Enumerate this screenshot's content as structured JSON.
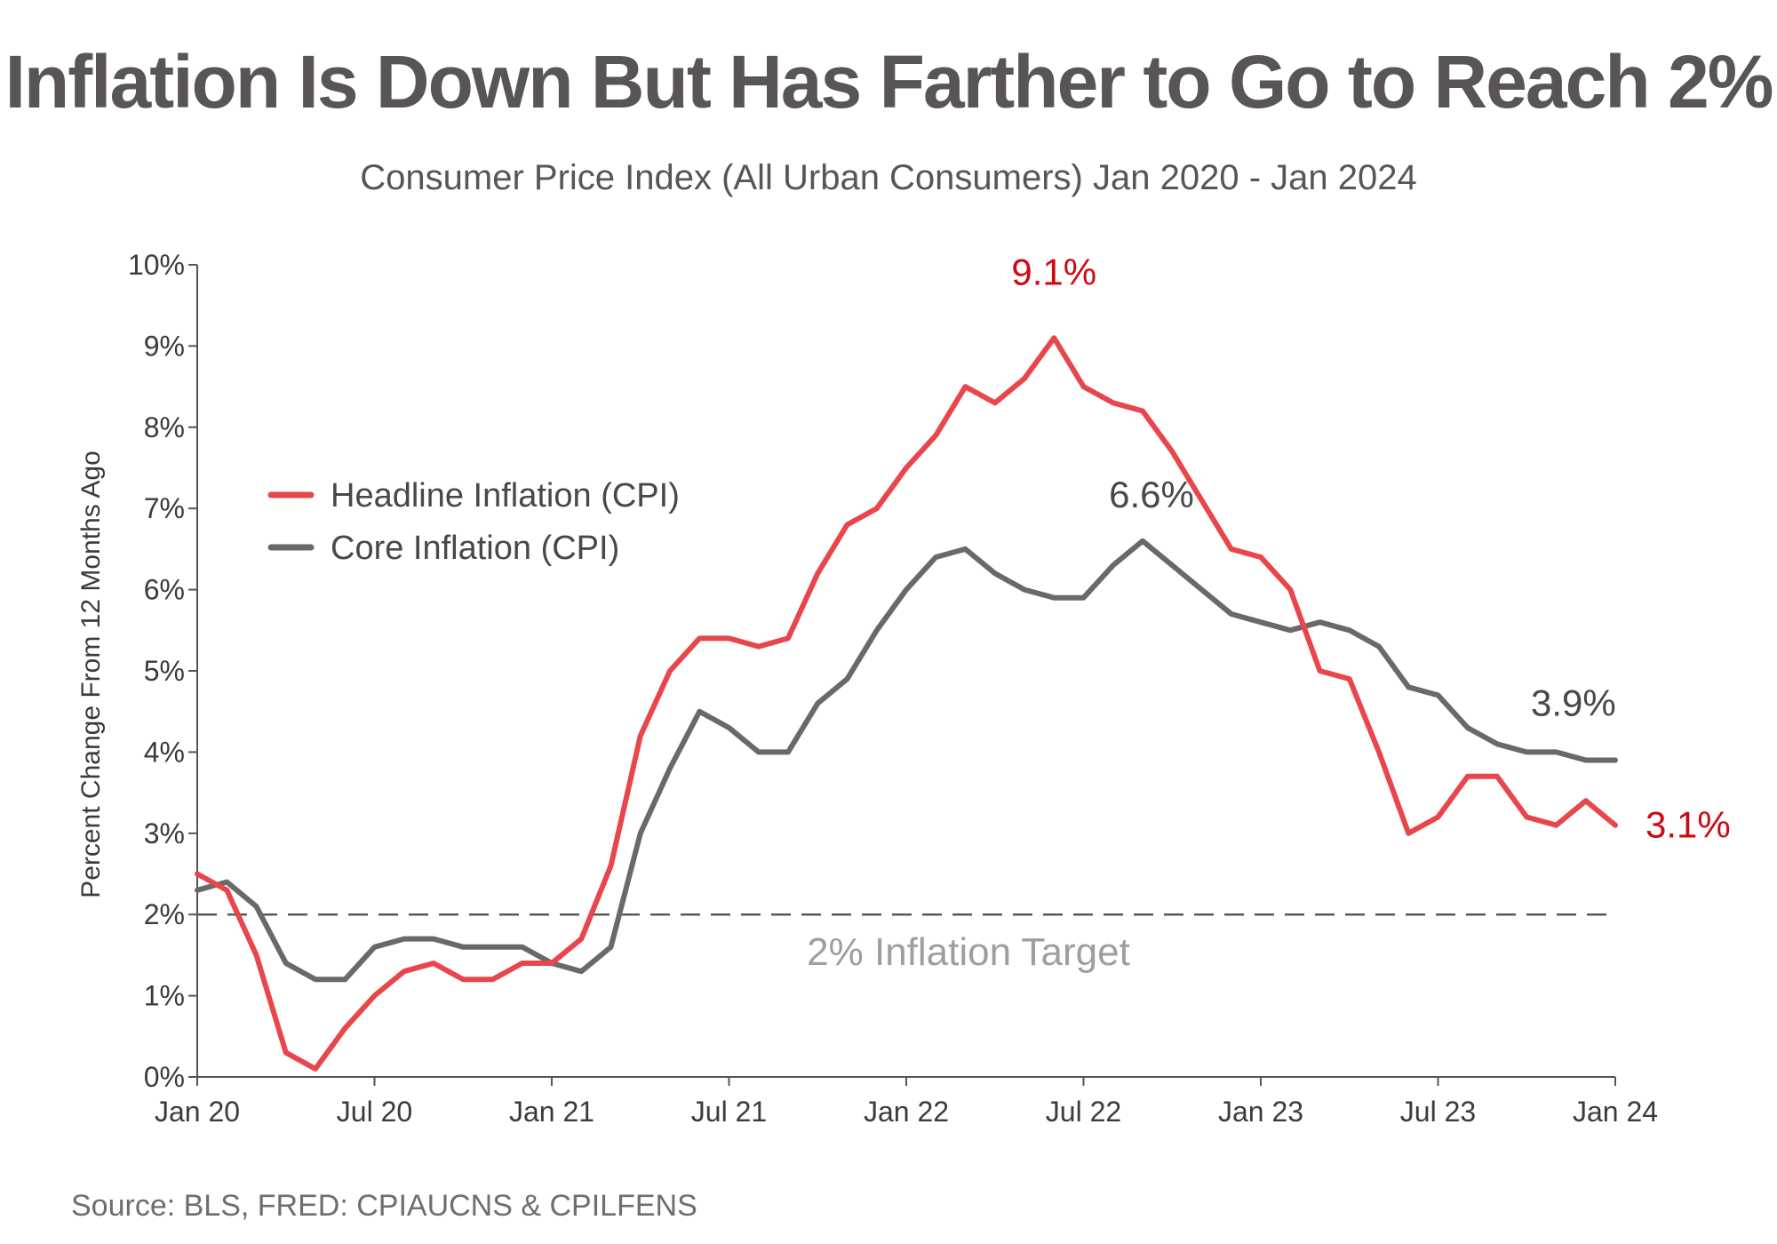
{
  "title": "Inflation Is Down But Has Farther to Go to Reach 2%",
  "subtitle": "Consumer Price Index (All Urban Consumers) Jan 2020 - Jan 2024",
  "source": "Source: BLS, FRED: CPIAUCNS & CPILFENS",
  "colors": {
    "headline": "#e8464b",
    "core": "#6b6869",
    "annotation_red": "#cc0a14",
    "annotation_dark": "#4a4748",
    "target_line": "#595959",
    "target_text": "#9e9e9e",
    "axis": "#555555"
  },
  "chart_data": {
    "type": "line",
    "title": "Inflation Is Down But Has Farther to Go to Reach 2%",
    "subtitle": "Consumer Price Index (All Urban Consumers) Jan 2020 - Jan 2024",
    "xlabel": "",
    "ylabel": "Percent Change From 12 Months Ago",
    "ylim": [
      0,
      10
    ],
    "yticks": [
      0,
      1,
      2,
      3,
      4,
      5,
      6,
      7,
      8,
      9,
      10
    ],
    "ytick_labels": [
      "0%",
      "1%",
      "2%",
      "3%",
      "4%",
      "5%",
      "6%",
      "7%",
      "8%",
      "9%",
      "10%"
    ],
    "xticks": [
      "Jan 20",
      "Jul 20",
      "Jan 21",
      "Jul 21",
      "Jan 22",
      "Jul 22",
      "Jan 23",
      "Jul 23",
      "Jan 24"
    ],
    "grid": false,
    "legend_position": "upper-left",
    "x": [
      "2020-01",
      "2020-02",
      "2020-03",
      "2020-04",
      "2020-05",
      "2020-06",
      "2020-07",
      "2020-08",
      "2020-09",
      "2020-10",
      "2020-11",
      "2020-12",
      "2021-01",
      "2021-02",
      "2021-03",
      "2021-04",
      "2021-05",
      "2021-06",
      "2021-07",
      "2021-08",
      "2021-09",
      "2021-10",
      "2021-11",
      "2021-12",
      "2022-01",
      "2022-02",
      "2022-03",
      "2022-04",
      "2022-05",
      "2022-06",
      "2022-07",
      "2022-08",
      "2022-09",
      "2022-10",
      "2022-11",
      "2022-12",
      "2023-01",
      "2023-02",
      "2023-03",
      "2023-04",
      "2023-05",
      "2023-06",
      "2023-07",
      "2023-08",
      "2023-09",
      "2023-10",
      "2023-11",
      "2023-12",
      "2024-01"
    ],
    "series": [
      {
        "name": "Headline Inflation (CPI)",
        "values": [
          2.5,
          2.3,
          1.5,
          0.3,
          0.1,
          0.6,
          1.0,
          1.3,
          1.4,
          1.2,
          1.2,
          1.4,
          1.4,
          1.7,
          2.6,
          4.2,
          5.0,
          5.4,
          5.4,
          5.3,
          5.4,
          6.2,
          6.8,
          7.0,
          7.5,
          7.9,
          8.5,
          8.3,
          8.6,
          9.1,
          8.5,
          8.3,
          8.2,
          7.7,
          7.1,
          6.5,
          6.4,
          6.0,
          5.0,
          4.9,
          4.0,
          3.0,
          3.2,
          3.7,
          3.7,
          3.2,
          3.1,
          3.4,
          3.1
        ]
      },
      {
        "name": "Core Inflation (CPI)",
        "values": [
          2.3,
          2.4,
          2.1,
          1.4,
          1.2,
          1.2,
          1.6,
          1.7,
          1.7,
          1.6,
          1.6,
          1.6,
          1.4,
          1.3,
          1.6,
          3.0,
          3.8,
          4.5,
          4.3,
          4.0,
          4.0,
          4.6,
          4.9,
          5.5,
          6.0,
          6.4,
          6.5,
          6.2,
          6.0,
          5.9,
          5.9,
          6.3,
          6.6,
          6.3,
          6.0,
          5.7,
          5.6,
          5.5,
          5.6,
          5.5,
          5.3,
          4.8,
          4.7,
          4.3,
          4.1,
          4.0,
          4.0,
          3.9,
          3.9
        ]
      }
    ],
    "reference_line": {
      "value": 2,
      "style": "dashed",
      "label": "2% Inflation Target"
    },
    "annotations": [
      {
        "text": "9.1%",
        "series": "Headline Inflation (CPI)",
        "at": "2022-06"
      },
      {
        "text": "6.6%",
        "series": "Core Inflation (CPI)",
        "at": "2022-09"
      },
      {
        "text": "3.9%",
        "series": "Core Inflation (CPI)",
        "at": "2024-01"
      },
      {
        "text": "3.1%",
        "series": "Headline Inflation (CPI)",
        "at": "2024-01"
      }
    ]
  }
}
